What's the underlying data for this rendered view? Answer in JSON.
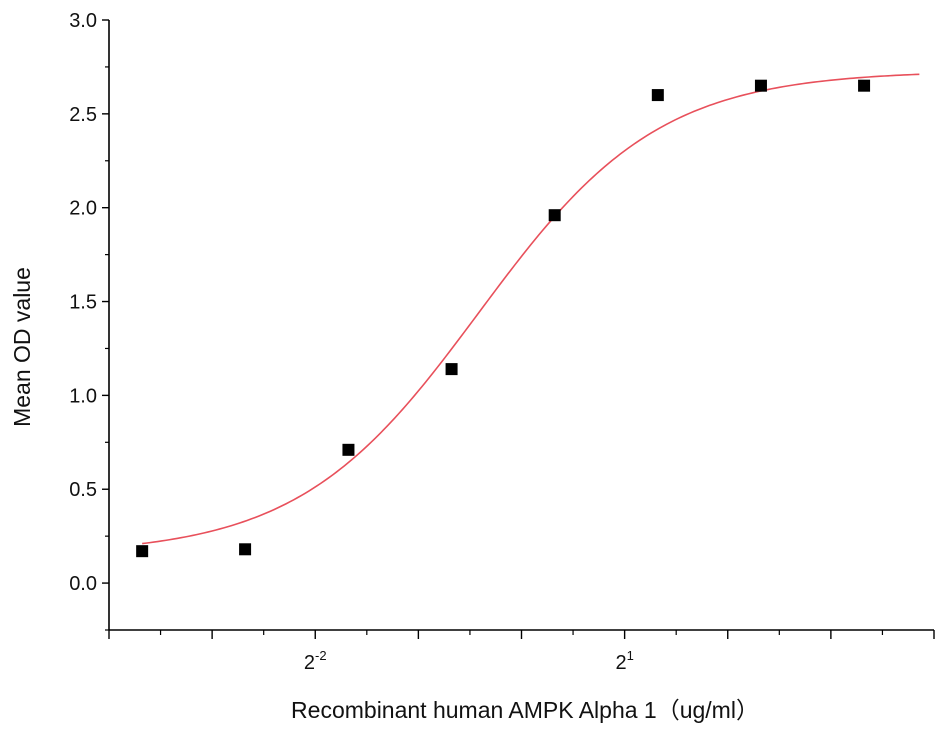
{
  "chart_data": {
    "type": "scatter",
    "title": "",
    "xlabel": "Recombinant human  AMPK Alpha 1（ug/ml）",
    "ylabel": "Mean OD value",
    "xscale": "log2",
    "xlim": [
      0.0625,
      16
    ],
    "ylim": [
      -0.25,
      3.0
    ],
    "x_ticks": [
      {
        "value": 0.25,
        "base": "2",
        "exp": "-2"
      },
      {
        "value": 2,
        "base": "2",
        "exp": "1"
      }
    ],
    "y_ticks": [
      "0.0",
      "0.5",
      "1.0",
      "1.5",
      "2.0",
      "2.5",
      "3.0"
    ],
    "grid": false,
    "legend": "none",
    "series": [
      {
        "kind": "points",
        "marker": "square",
        "color": "#000000",
        "x": [
          0.0781,
          0.156,
          0.3125,
          0.625,
          1.25,
          2.5,
          5,
          10
        ],
        "y": [
          0.17,
          0.18,
          0.71,
          1.14,
          1.96,
          2.6,
          2.65,
          2.65
        ]
      },
      {
        "kind": "fit",
        "color": "#e8505b",
        "model": "4PL",
        "params": {
          "bottom": 0.15,
          "top": 2.73,
          "ec50": 0.75,
          "hill": 1.65
        },
        "x_range": [
          0.0781,
          14.5
        ]
      }
    ]
  }
}
